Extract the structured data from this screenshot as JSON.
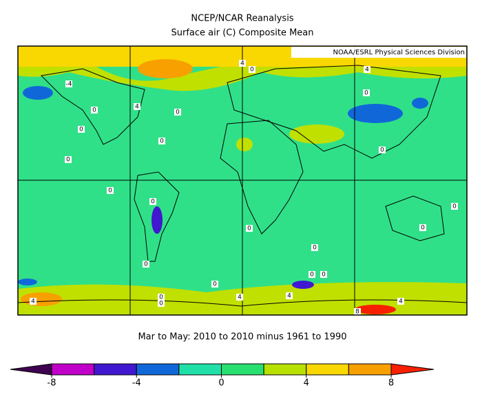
{
  "title": "NCEP/NCAR Reanalysis",
  "subtitle": "Surface air (C) Composite Mean",
  "credit": "NOAA/ESRL Physical Sciences Division",
  "caption": "Mar to May: 2010 to 2010 minus 1961 to 1990",
  "map": {
    "contour_labels": [
      -4,
      0,
      0,
      0,
      4,
      0,
      0,
      0,
      4,
      4,
      0,
      0,
      0,
      0,
      0,
      0,
      0,
      0,
      0,
      0,
      0,
      0,
      0,
      4,
      4,
      4,
      4,
      8,
      0
    ]
  },
  "colorbar": {
    "lim": [
      -8,
      8
    ],
    "ticks": [
      -8,
      -4,
      0,
      4,
      8
    ],
    "colors": [
      "#400050",
      "#c000c8",
      "#4018d0",
      "#1068d8",
      "#20e0a8",
      "#28e070",
      "#b8e000",
      "#f8d800",
      "#f8a000",
      "#f82000"
    ]
  }
}
